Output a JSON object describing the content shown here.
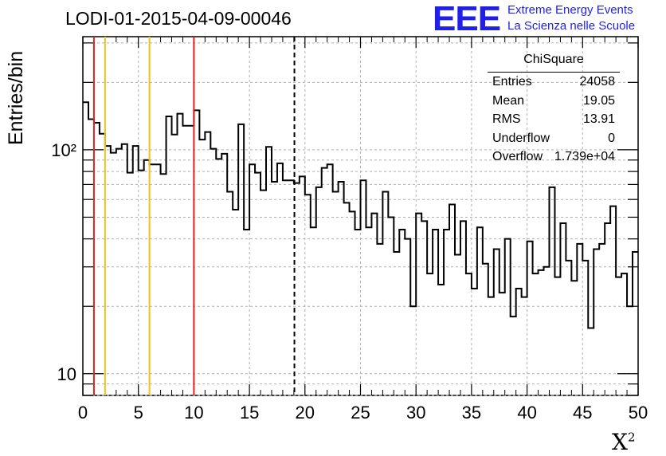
{
  "header": {
    "title": "LODI-01-2015-04-09-00046",
    "logo": "EEE",
    "logo_line1": "Extreme Energy Events",
    "logo_line2": "La Scienza nelle Scuole"
  },
  "colors": {
    "red_lines": "#dd2222",
    "orange_lines": "#f0c020",
    "logo": "#1f1fe6",
    "grid": "#b0b0b0"
  },
  "stats": {
    "title": "ChiSquare",
    "rows": [
      {
        "key": "Entries",
        "value": "24058"
      },
      {
        "key": "Mean",
        "value": "19.05"
      },
      {
        "key": "RMS",
        "value": "13.91"
      },
      {
        "key": "Underflow",
        "value": "0"
      },
      {
        "key": "Overflow",
        "value": "1.739e+04"
      }
    ]
  },
  "chart_data": {
    "type": "bar",
    "style": "step-histogram",
    "title": "LODI-01-2015-04-09-00046",
    "xlabel": "X²",
    "ylabel": "Entries/bin",
    "xlim": [
      0,
      50
    ],
    "ylim": [
      8,
      320
    ],
    "yscale": "log",
    "grid": true,
    "bin_width": 0.5,
    "xticks": [
      0,
      5,
      10,
      15,
      20,
      25,
      30,
      35,
      40,
      45,
      50
    ],
    "yticks": [
      {
        "value": 10,
        "label": "10"
      },
      {
        "value": 100,
        "label": "10²"
      }
    ],
    "values": [
      163,
      137,
      132,
      118,
      104,
      97,
      101,
      106,
      79,
      104,
      81,
      90,
      86,
      86,
      78,
      141,
      117,
      145,
      128,
      128,
      150,
      111,
      120,
      101,
      91,
      96,
      65,
      54,
      130,
      44,
      86,
      79,
      66,
      103,
      72,
      87,
      73,
      73,
      71,
      76,
      63,
      45,
      68,
      83,
      86,
      65,
      72,
      58,
      53,
      44,
      73,
      45,
      52,
      38,
      65,
      50,
      35,
      44,
      40,
      20,
      52,
      48,
      28,
      44,
      25,
      44,
      57,
      34,
      48,
      28,
      24,
      45,
      31,
      22,
      36,
      23,
      40,
      18,
      24,
      22,
      39,
      28,
      29,
      30,
      68,
      27,
      47,
      32,
      26,
      38,
      32,
      16,
      36,
      38,
      47,
      56,
      27,
      28,
      20,
      35
    ],
    "vertical_lines": [
      {
        "x": 1,
        "color": "red",
        "style": "solid"
      },
      {
        "x": 2,
        "color": "orange",
        "style": "solid"
      },
      {
        "x": 6,
        "color": "orange",
        "style": "solid"
      },
      {
        "x": 10,
        "color": "red",
        "style": "solid"
      },
      {
        "x": 19.05,
        "color": "black",
        "style": "dashed"
      }
    ]
  }
}
